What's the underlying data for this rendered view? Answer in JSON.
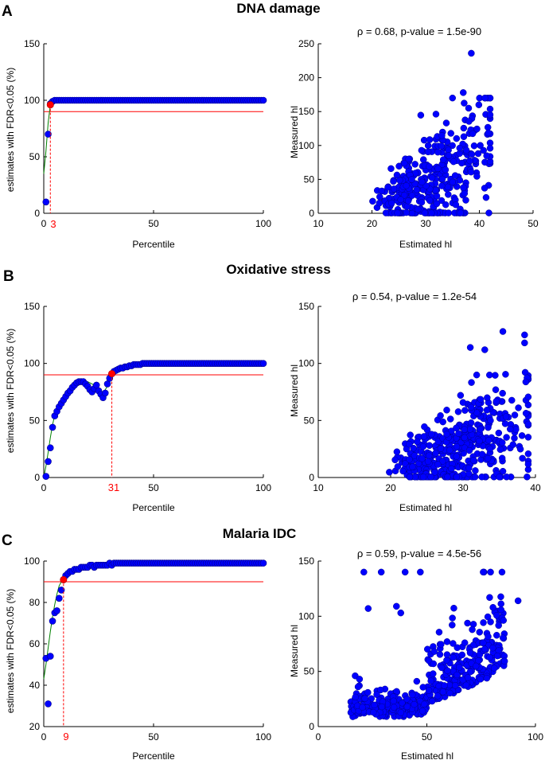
{
  "colors": {
    "marker": "#0000ff",
    "marker_edge": "#00008b",
    "threshold": "#ff0000",
    "fit": "#008000",
    "highlight": "#ff0000",
    "axis": "#000000"
  },
  "panels": [
    {
      "letter": "A",
      "title": "DNA damage",
      "left_ylabel": "estimates with FDR<0.05 (%)",
      "left_xlabel": "Percentile",
      "right_xlabel": "Estimated hl",
      "right_ylabel": "Measured hl",
      "stats": "ρ = 0.68, p-value = 1.5e-90",
      "cutoff_label": "3"
    },
    {
      "letter": "B",
      "title": "Oxidative stress",
      "left_ylabel": "estimates with FDR<0.05 (%)",
      "left_xlabel": "Percentile",
      "right_xlabel": "Estimated hl",
      "right_ylabel": "Measured hl",
      "stats": "ρ = 0.54, p-value = 1.2e-54",
      "cutoff_label": "31"
    },
    {
      "letter": "C",
      "title": "Malaria IDC",
      "left_ylabel": "estimates with FDR<0.05 (%)",
      "left_xlabel": "Percentile",
      "right_xlabel": "Estimated hl",
      "right_ylabel": "Measured hl",
      "stats": "ρ = 0.59, p-value = 4.5e-56",
      "cutoff_label": "9"
    }
  ],
  "chart_data": [
    {
      "type": "line",
      "panel": "A",
      "xlabel": "Percentile",
      "ylabel": "estimates with FDR<0.05 (%)",
      "xlim": [
        0,
        100
      ],
      "ylim": [
        0,
        150
      ],
      "xticks": [
        0,
        50,
        100
      ],
      "yticks": [
        0,
        50,
        100,
        150
      ],
      "threshold_y": 90,
      "cutoff": {
        "x": 3,
        "y": 96
      },
      "fit_x": [
        0,
        1,
        2,
        3,
        4,
        5,
        6,
        8,
        10,
        15,
        20,
        30,
        40,
        50,
        60,
        70,
        80,
        90,
        100
      ],
      "fit_y": [
        35,
        55,
        80,
        96,
        99,
        100,
        100,
        100,
        100,
        100,
        100,
        100,
        100,
        100,
        100,
        100,
        100,
        100,
        100
      ],
      "series": [
        {
          "name": "estimates",
          "x": [
            1,
            2,
            3,
            4,
            5,
            6,
            7,
            8,
            9,
            10,
            11,
            12,
            13,
            14,
            15,
            16,
            17,
            18,
            19,
            20,
            21,
            22,
            23,
            24,
            25,
            26,
            27,
            28,
            29,
            30,
            31,
            32,
            33,
            34,
            35,
            36,
            37,
            38,
            39,
            40,
            41,
            42,
            43,
            44,
            45,
            46,
            47,
            48,
            49,
            50,
            51,
            52,
            53,
            54,
            55,
            56,
            57,
            58,
            59,
            60,
            61,
            62,
            63,
            64,
            65,
            66,
            67,
            68,
            69,
            70,
            71,
            72,
            73,
            74,
            75,
            76,
            77,
            78,
            79,
            80,
            81,
            82,
            83,
            84,
            85,
            86,
            87,
            88,
            89,
            90,
            91,
            92,
            93,
            94,
            95,
            96,
            97,
            98,
            99,
            100
          ],
          "y": [
            10,
            70,
            97,
            99,
            100,
            100,
            100,
            100,
            100,
            100,
            100,
            100,
            100,
            100,
            100,
            100,
            100,
            100,
            100,
            100,
            100,
            100,
            100,
            100,
            100,
            100,
            100,
            100,
            100,
            100,
            100,
            100,
            100,
            100,
            100,
            100,
            100,
            100,
            100,
            100,
            100,
            100,
            100,
            100,
            100,
            100,
            100,
            100,
            100,
            100,
            100,
            100,
            100,
            100,
            100,
            100,
            100,
            100,
            100,
            100,
            100,
            100,
            100,
            100,
            100,
            100,
            100,
            100,
            100,
            100,
            100,
            100,
            100,
            100,
            100,
            100,
            100,
            100,
            100,
            100,
            100,
            100,
            100,
            100,
            100,
            100,
            100,
            100,
            100,
            100,
            100,
            100,
            100,
            100,
            100,
            100,
            100,
            100,
            100,
            100
          ]
        }
      ]
    },
    {
      "type": "scatter",
      "panel": "A",
      "title": "ρ = 0.68, p-value = 1.5e-90",
      "xlabel": "Estimated hl",
      "ylabel": "Measured hl",
      "xlim": [
        10,
        50
      ],
      "ylim": [
        0,
        250
      ],
      "xticks": [
        10,
        20,
        30,
        40,
        50
      ],
      "yticks": [
        0,
        50,
        100,
        150,
        200,
        250
      ],
      "n_points": 350,
      "x_range": [
        17,
        42
      ],
      "y_range": [
        0,
        236
      ],
      "outliers": [
        [
          38.5,
          236
        ],
        [
          37,
          178
        ],
        [
          38,
          155
        ],
        [
          35,
          170
        ]
      ]
    },
    {
      "type": "line",
      "panel": "B",
      "xlabel": "Percentile",
      "ylabel": "estimates with FDR<0.05 (%)",
      "xlim": [
        0,
        100
      ],
      "ylim": [
        0,
        150
      ],
      "xticks": [
        0,
        50,
        100
      ],
      "yticks": [
        0,
        50,
        100,
        150
      ],
      "threshold_y": 90,
      "cutoff": {
        "x": 31,
        "y": 91
      },
      "fit_x": [
        0,
        1,
        2,
        3,
        4,
        5,
        7,
        10,
        12,
        15,
        18,
        20,
        22,
        25,
        27,
        29,
        31,
        35,
        40,
        45,
        50,
        60,
        70,
        80,
        90,
        100
      ],
      "fit_y": [
        0,
        10,
        22,
        35,
        46,
        55,
        64,
        72,
        76,
        80,
        83,
        84,
        82,
        78,
        74,
        80,
        91,
        96,
        98,
        99,
        100,
        100,
        100,
        100,
        100,
        100
      ],
      "series": [
        {
          "name": "estimates",
          "x": [
            1,
            2,
            3,
            4,
            5,
            6,
            7,
            8,
            9,
            10,
            11,
            12,
            13,
            14,
            15,
            16,
            17,
            18,
            19,
            20,
            21,
            22,
            23,
            24,
            25,
            26,
            27,
            28,
            29,
            30,
            31,
            32,
            33,
            34,
            35,
            36,
            37,
            38,
            39,
            40,
            41,
            42,
            43,
            44,
            45,
            46,
            47,
            48,
            49,
            50,
            51,
            52,
            53,
            54,
            55,
            56,
            57,
            58,
            59,
            60,
            61,
            62,
            63,
            64,
            65,
            66,
            67,
            68,
            69,
            70,
            71,
            72,
            73,
            74,
            75,
            76,
            77,
            78,
            79,
            80,
            81,
            82,
            83,
            84,
            85,
            86,
            87,
            88,
            89,
            90,
            91,
            92,
            93,
            94,
            95,
            96,
            97,
            98,
            99,
            100
          ],
          "y": [
            1,
            14,
            26,
            44,
            54,
            58,
            62,
            65,
            68,
            71,
            74,
            76,
            79,
            81,
            83,
            84,
            84,
            84,
            82,
            80,
            77,
            75,
            78,
            81,
            76,
            73,
            70,
            74,
            82,
            87,
            91,
            93,
            94,
            95,
            96,
            96,
            97,
            97,
            98,
            98,
            99,
            99,
            99,
            99,
            100,
            100,
            100,
            100,
            100,
            100,
            100,
            100,
            100,
            100,
            100,
            100,
            100,
            100,
            100,
            100,
            100,
            100,
            100,
            100,
            100,
            100,
            100,
            100,
            100,
            100,
            100,
            100,
            100,
            100,
            100,
            100,
            100,
            100,
            100,
            100,
            100,
            100,
            100,
            100,
            100,
            100,
            100,
            100,
            100,
            100,
            100,
            100,
            100,
            100,
            100,
            100,
            100,
            100,
            100,
            100
          ]
        }
      ]
    },
    {
      "type": "scatter",
      "panel": "B",
      "title": "ρ = 0.54, p-value = 1.2e-54",
      "xlabel": "Estimated hl",
      "ylabel": "Measured hl",
      "xlim": [
        10,
        40
      ],
      "ylim": [
        0,
        150
      ],
      "xticks": [
        10,
        20,
        30,
        40
      ],
      "yticks": [
        0,
        50,
        100,
        150
      ],
      "n_points": 450,
      "x_range": [
        17,
        39
      ],
      "y_range": [
        0,
        128
      ],
      "outliers": [
        [
          35.5,
          128
        ],
        [
          38.5,
          125
        ],
        [
          38.5,
          118
        ],
        [
          31,
          114
        ],
        [
          33,
          112
        ]
      ]
    },
    {
      "type": "line",
      "panel": "C",
      "xlabel": "Percentile",
      "ylabel": "estimates with FDR<0.05 (%)",
      "xlim": [
        0,
        100
      ],
      "ylim": [
        20,
        100
      ],
      "xticks": [
        0,
        50,
        100
      ],
      "yticks": [
        20,
        40,
        60,
        80,
        100
      ],
      "threshold_y": 90,
      "cutoff": {
        "x": 9,
        "y": 91
      },
      "fit_x": [
        0,
        1,
        2,
        3,
        4,
        5,
        6,
        7,
        8,
        9,
        11,
        14,
        18,
        25,
        35,
        50,
        65,
        80,
        100
      ],
      "fit_y": [
        43,
        50,
        58,
        66,
        73,
        79,
        84,
        88,
        90,
        91,
        93,
        95,
        96,
        97,
        98,
        99,
        99,
        99,
        99
      ],
      "series": [
        {
          "name": "estimates",
          "x": [
            1,
            2,
            3,
            4,
            5,
            6,
            7,
            8,
            9,
            10,
            11,
            12,
            13,
            14,
            15,
            16,
            17,
            18,
            19,
            20,
            21,
            22,
            23,
            24,
            25,
            26,
            27,
            28,
            29,
            30,
            31,
            32,
            33,
            34,
            35,
            36,
            37,
            38,
            39,
            40,
            41,
            42,
            43,
            44,
            45,
            46,
            47,
            48,
            49,
            50,
            51,
            52,
            53,
            54,
            55,
            56,
            57,
            58,
            59,
            60,
            61,
            62,
            63,
            64,
            65,
            66,
            67,
            68,
            69,
            70,
            71,
            72,
            73,
            74,
            75,
            76,
            77,
            78,
            79,
            80,
            81,
            82,
            83,
            84,
            85,
            86,
            87,
            88,
            89,
            90,
            91,
            92,
            93,
            94,
            95,
            96,
            97,
            98,
            99,
            100
          ],
          "y": [
            53,
            31,
            54,
            71,
            75,
            76,
            82,
            86,
            91,
            93,
            94,
            95,
            95,
            96,
            96,
            96,
            97,
            97,
            97,
            97,
            98,
            98,
            97,
            98,
            98,
            98,
            98,
            98,
            98,
            99,
            98,
            99,
            99,
            99,
            99,
            99,
            99,
            99,
            99,
            99,
            99,
            99,
            99,
            99,
            99,
            99,
            99,
            99,
            99,
            99,
            99,
            99,
            99,
            99,
            99,
            99,
            99,
            99,
            99,
            99,
            99,
            99,
            99,
            99,
            99,
            99,
            99,
            99,
            99,
            99,
            99,
            99,
            99,
            99,
            99,
            99,
            99,
            99,
            99,
            99,
            99,
            99,
            99,
            99,
            99,
            99,
            99,
            99,
            99,
            99,
            99,
            99,
            99,
            99,
            99,
            99,
            99,
            99,
            99,
            99
          ]
        }
      ]
    },
    {
      "type": "scatter",
      "panel": "C",
      "title": "ρ = 0.59, p-value = 4.5e-56",
      "xlabel": "Estimated hl",
      "ylabel": "Measured hl",
      "xlim": [
        0,
        100
      ],
      "ylim": [
        0,
        150
      ],
      "xticks": [
        0,
        50,
        100
      ],
      "yticks": [
        0,
        50,
        100,
        150
      ],
      "n_points": 520,
      "x_range": [
        15,
        92
      ],
      "y_range": [
        0,
        140
      ],
      "outliers": [
        [
          21,
          140
        ],
        [
          29,
          140
        ],
        [
          40,
          140
        ],
        [
          47,
          140
        ],
        [
          92,
          114
        ],
        [
          23,
          107
        ],
        [
          36,
          109
        ],
        [
          38,
          103
        ],
        [
          17,
          46
        ],
        [
          19,
          43
        ]
      ]
    }
  ]
}
